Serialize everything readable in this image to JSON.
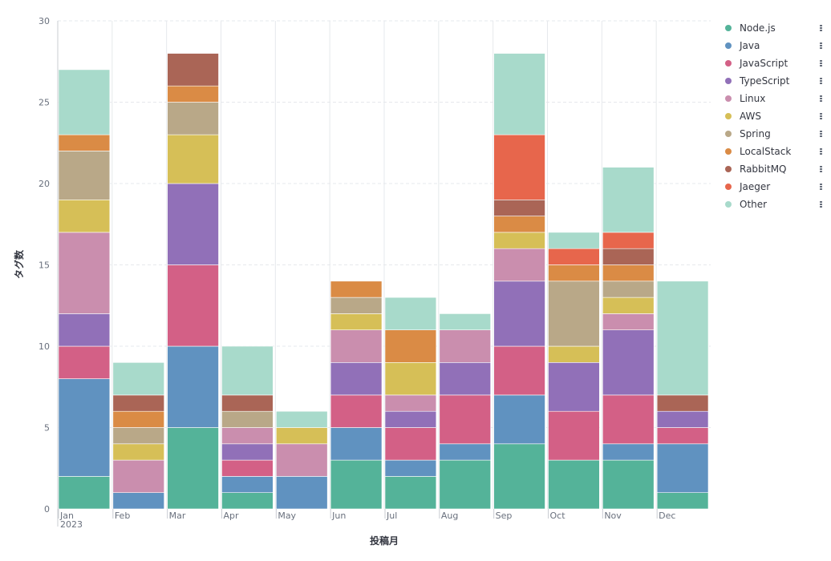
{
  "chart_data": {
    "type": "bar",
    "stacked": true,
    "xlabel": "投稿月",
    "ylabel": "タグ数",
    "ylim": [
      0,
      30
    ],
    "yticks": [
      0,
      5,
      10,
      15,
      20,
      25,
      30
    ],
    "grid": true,
    "legend_position": "right",
    "categories": [
      "Jan",
      "Feb",
      "Mar",
      "Apr",
      "May",
      "Jun",
      "Jul",
      "Aug",
      "Sep",
      "Oct",
      "Nov",
      "Dec"
    ],
    "x_year_label": "2023",
    "series": [
      {
        "name": "Node.js",
        "color": "#54b399",
        "values": [
          2,
          0,
          5,
          1,
          0,
          3,
          2,
          3,
          4,
          3,
          3,
          1
        ]
      },
      {
        "name": "Java",
        "color": "#6092c0",
        "values": [
          6,
          1,
          5,
          1,
          2,
          2,
          1,
          1,
          3,
          0,
          1,
          3
        ]
      },
      {
        "name": "JavaScript",
        "color": "#d36086",
        "values": [
          2,
          0,
          5,
          1,
          0,
          2,
          2,
          3,
          3,
          3,
          3,
          1
        ]
      },
      {
        "name": "TypeScript",
        "color": "#9170b8",
        "values": [
          2,
          0,
          5,
          1,
          0,
          2,
          1,
          2,
          4,
          3,
          4,
          1
        ]
      },
      {
        "name": "Linux",
        "color": "#ca8eae",
        "values": [
          5,
          2,
          0,
          1,
          2,
          2,
          1,
          2,
          2,
          0,
          1,
          0
        ]
      },
      {
        "name": "AWS",
        "color": "#d6bf57",
        "values": [
          2,
          1,
          3,
          0,
          1,
          1,
          2,
          0,
          1,
          1,
          1,
          0
        ]
      },
      {
        "name": "Spring",
        "color": "#b9a888",
        "values": [
          3,
          1,
          2,
          1,
          0,
          1,
          0,
          0,
          0,
          4,
          1,
          0
        ]
      },
      {
        "name": "LocalStack",
        "color": "#da8b45",
        "values": [
          1,
          1,
          1,
          0,
          0,
          1,
          2,
          0,
          1,
          1,
          1,
          0
        ]
      },
      {
        "name": "RabbitMQ",
        "color": "#aa6556",
        "values": [
          0,
          1,
          2,
          1,
          0,
          0,
          0,
          0,
          1,
          0,
          1,
          1
        ]
      },
      {
        "name": "Jaeger",
        "color": "#e7664c",
        "values": [
          0,
          0,
          0,
          0,
          0,
          0,
          0,
          0,
          4,
          1,
          1,
          0
        ]
      },
      {
        "name": "Other",
        "color": "#a8dacb",
        "values": [
          4,
          2,
          0,
          3,
          1,
          0,
          2,
          1,
          5,
          1,
          4,
          7
        ]
      }
    ]
  }
}
